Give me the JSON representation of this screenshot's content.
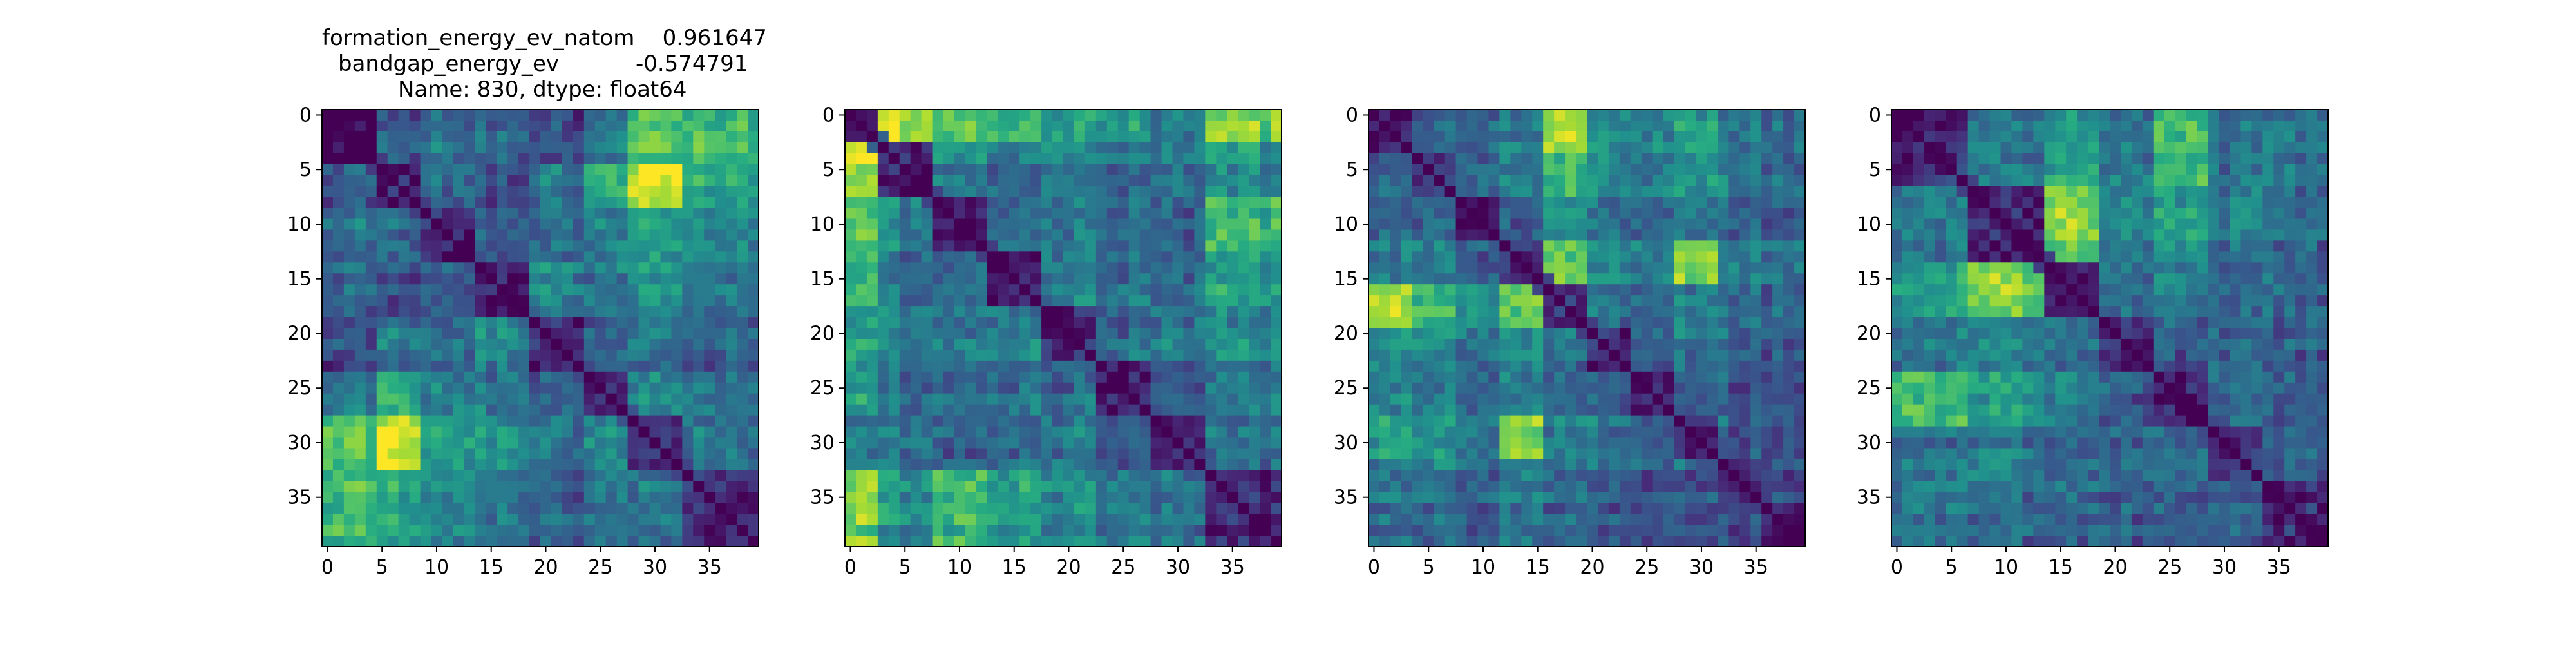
{
  "figure": {
    "title_lines": [
      "formation_energy_ev_natom    0.961647",
      "bandgap_energy_ev           -0.574791",
      "Name: 830, dtype: float64"
    ]
  },
  "colormap": "viridis",
  "chart_data": [
    {
      "type": "heatmap",
      "size": 40,
      "vmin": 0,
      "vmax": 1,
      "xticks": [
        0,
        5,
        10,
        15,
        20,
        25,
        30,
        35
      ],
      "yticks": [
        0,
        5,
        10,
        15,
        20,
        25,
        30,
        35
      ],
      "blocks": [
        0,
        5,
        9,
        14,
        19,
        24,
        28,
        33,
        40
      ],
      "seed": 11,
      "matrix_rows": [
        [
          0.0,
          0.3,
          0.38,
          0.35,
          0.25,
          0.45,
          0.72,
          0.7,
          0.32
        ],
        [
          0.3,
          0.12,
          0.35,
          0.22,
          0.4,
          0.62,
          0.92,
          0.6,
          0.5
        ],
        [
          0.38,
          0.35,
          0.1,
          0.3,
          0.32,
          0.42,
          0.55,
          0.45,
          0.4
        ],
        [
          0.35,
          0.22,
          0.3,
          0.1,
          0.45,
          0.4,
          0.5,
          0.38,
          0.35
        ],
        [
          0.25,
          0.4,
          0.32,
          0.45,
          0.1,
          0.28,
          0.35,
          0.3,
          0.32
        ],
        [
          0.45,
          0.62,
          0.42,
          0.4,
          0.28,
          0.1,
          0.45,
          0.4,
          0.38
        ],
        [
          0.72,
          0.92,
          0.55,
          0.5,
          0.35,
          0.45,
          0.12,
          0.35,
          0.42
        ],
        [
          0.7,
          0.6,
          0.45,
          0.38,
          0.3,
          0.4,
          0.35,
          0.1,
          0.3
        ],
        [
          0.32,
          0.5,
          0.4,
          0.35,
          0.32,
          0.38,
          0.42,
          0.3,
          0.12
        ]
      ]
    },
    {
      "type": "heatmap",
      "size": 40,
      "vmin": 0,
      "vmax": 1,
      "xticks": [
        0,
        5,
        10,
        15,
        20,
        25,
        30,
        35
      ],
      "yticks": [
        0,
        5,
        10,
        15,
        20,
        25,
        30,
        35
      ],
      "blocks": [
        0,
        3,
        8,
        13,
        18,
        23,
        28,
        33,
        40
      ],
      "seed": 23,
      "matrix_rows": [
        [
          0.1,
          0.9,
          0.75,
          0.7,
          0.6,
          0.55,
          0.45,
          0.8
        ],
        [
          0.9,
          0.1,
          0.45,
          0.4,
          0.45,
          0.35,
          0.4,
          0.5
        ],
        [
          0.75,
          0.45,
          0.1,
          0.35,
          0.4,
          0.38,
          0.3,
          0.65
        ],
        [
          0.7,
          0.4,
          0.35,
          0.1,
          0.45,
          0.4,
          0.35,
          0.55
        ],
        [
          0.6,
          0.45,
          0.4,
          0.45,
          0.1,
          0.35,
          0.4,
          0.45
        ],
        [
          0.55,
          0.35,
          0.38,
          0.4,
          0.35,
          0.1,
          0.3,
          0.4
        ],
        [
          0.45,
          0.4,
          0.3,
          0.35,
          0.4,
          0.3,
          0.1,
          0.35
        ],
        [
          0.8,
          0.5,
          0.65,
          0.55,
          0.45,
          0.4,
          0.35,
          0.1
        ]
      ]
    },
    {
      "type": "heatmap",
      "size": 40,
      "vmin": 0,
      "vmax": 1,
      "xticks": [
        0,
        5,
        10,
        15,
        20,
        25,
        30,
        35
      ],
      "yticks": [
        0,
        5,
        10,
        15,
        20,
        25,
        30,
        35
      ],
      "blocks": [
        0,
        4,
        8,
        12,
        16,
        20,
        24,
        28,
        32,
        36,
        40
      ],
      "seed": 37,
      "matrix_rows": [
        [
          0.1,
          0.3,
          0.35,
          0.4,
          0.85,
          0.5,
          0.45,
          0.55,
          0.4,
          0.35
        ],
        [
          0.3,
          0.1,
          0.32,
          0.38,
          0.6,
          0.45,
          0.4,
          0.5,
          0.38,
          0.3
        ],
        [
          0.35,
          0.32,
          0.1,
          0.3,
          0.5,
          0.4,
          0.35,
          0.45,
          0.35,
          0.32
        ],
        [
          0.4,
          0.38,
          0.3,
          0.1,
          0.7,
          0.45,
          0.4,
          0.8,
          0.45,
          0.4
        ],
        [
          0.85,
          0.6,
          0.5,
          0.7,
          0.1,
          0.35,
          0.3,
          0.4,
          0.35,
          0.3
        ],
        [
          0.5,
          0.45,
          0.4,
          0.45,
          0.35,
          0.1,
          0.3,
          0.38,
          0.32,
          0.3
        ],
        [
          0.45,
          0.4,
          0.35,
          0.4,
          0.3,
          0.3,
          0.1,
          0.32,
          0.3,
          0.28
        ],
        [
          0.55,
          0.5,
          0.45,
          0.8,
          0.4,
          0.38,
          0.32,
          0.1,
          0.3,
          0.28
        ],
        [
          0.4,
          0.38,
          0.35,
          0.45,
          0.35,
          0.32,
          0.3,
          0.3,
          0.1,
          0.28
        ],
        [
          0.35,
          0.3,
          0.32,
          0.4,
          0.3,
          0.3,
          0.28,
          0.28,
          0.28,
          0.1
        ]
      ]
    },
    {
      "type": "heatmap",
      "size": 40,
      "vmin": 0,
      "vmax": 1,
      "xticks": [
        0,
        5,
        10,
        15,
        20,
        25,
        30,
        35
      ],
      "yticks": [
        0,
        5,
        10,
        15,
        20,
        25,
        30,
        35
      ],
      "blocks": [
        0,
        7,
        14,
        19,
        24,
        29,
        34,
        40
      ],
      "seed": 53,
      "matrix_rows": [
        [
          0.1,
          0.4,
          0.55,
          0.4,
          0.7,
          0.35,
          0.4
        ],
        [
          0.4,
          0.1,
          0.8,
          0.45,
          0.55,
          0.4,
          0.35
        ],
        [
          0.55,
          0.8,
          0.1,
          0.35,
          0.45,
          0.3,
          0.35
        ],
        [
          0.4,
          0.45,
          0.35,
          0.1,
          0.3,
          0.32,
          0.3
        ],
        [
          0.7,
          0.55,
          0.45,
          0.3,
          0.1,
          0.35,
          0.32
        ],
        [
          0.35,
          0.4,
          0.3,
          0.32,
          0.35,
          0.1,
          0.3
        ],
        [
          0.4,
          0.35,
          0.35,
          0.3,
          0.32,
          0.3,
          0.1
        ]
      ]
    }
  ]
}
